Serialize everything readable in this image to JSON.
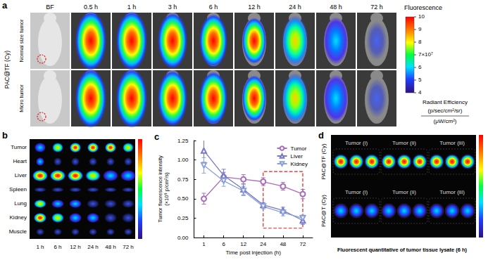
{
  "panels": {
    "a": {
      "letter": "a",
      "columns": [
        "BF",
        "0.5 h",
        "1 h",
        "3 h",
        "6 h",
        "12 h",
        "24 h",
        "48 h",
        "72 h"
      ],
      "row_group": "PAC@TF (Cy)",
      "rows": [
        "Normal size tumor",
        "Micro tumor"
      ],
      "colorbar": {
        "title": "Fluorescence",
        "range": [
          4,
          10
        ],
        "ticks": [
          10,
          9,
          8,
          {
            "value": 7,
            "label": "7×10⁷"
          },
          6,
          5,
          4
        ],
        "unit": [
          "Radiant Efficiency",
          "(p/sec/cm²/sr)",
          "(μW/cm²)"
        ]
      }
    },
    "b": {
      "letter": "b",
      "rows": [
        "Tumor",
        "Heart",
        "Liver",
        "Spleen",
        "Lung",
        "Kidney",
        "Muscle"
      ],
      "columns": [
        "1 h",
        "6 h",
        "12 h",
        "24 h",
        "48 h",
        "72 h"
      ]
    },
    "c": {
      "letter": "c"
    },
    "d": {
      "letter": "d",
      "rows": [
        "PAC@TF (Cy)",
        "PAC@T (Cy)"
      ],
      "groups": [
        "Tumor (i)",
        "Tumor (ii)",
        "Tumor (iii)"
      ],
      "title": "Fluorescent quantitative of tumor tissue lysate (6 h)"
    }
  },
  "chart_data": {
    "type": "line",
    "x_label": "Time post injection (h)",
    "y_label": "Tumor fluorescence intensity (×10⁹ p/cm²/s)",
    "categories": [
      "1",
      "6",
      "12",
      "24",
      "48",
      "72"
    ],
    "ylim": [
      0,
      1.25
    ],
    "yticks": [
      {
        "value": 0,
        "label": "0.00"
      },
      {
        "value": 0.25,
        "label": "0.25"
      },
      {
        "value": 0.5,
        "label": "0.50"
      },
      {
        "value": 0.75,
        "label": "0.75"
      },
      {
        "value": 1,
        "label": "1.00"
      },
      {
        "value": 1.25,
        "label": "1.25"
      }
    ],
    "legend": "top-right",
    "grid": false,
    "highlight": {
      "x": [
        "24",
        "72"
      ],
      "y": [
        0.12,
        0.85
      ]
    },
    "series": [
      {
        "name": "Tumor",
        "color": "#a96dbb",
        "marker": "circle",
        "values": [
          0.5,
          0.78,
          0.75,
          0.72,
          0.66,
          0.56
        ],
        "errors": [
          0.07,
          0.06,
          0.06,
          0.05,
          0.05,
          0.06
        ]
      },
      {
        "name": "Liver",
        "color": "#7779c6",
        "marker": "triangle",
        "values": [
          1.12,
          0.8,
          0.62,
          0.42,
          0.35,
          0.22
        ],
        "errors": [
          0.15,
          0.08,
          0.07,
          0.03,
          0.04,
          0.05
        ]
      },
      {
        "name": "Kidney",
        "color": "#8aa0da",
        "marker": "triangle-down",
        "values": [
          0.93,
          0.73,
          0.6,
          0.4,
          0.32,
          0.25
        ],
        "errors": [
          0.1,
          0.07,
          0.06,
          0.03,
          0.04,
          0.04
        ]
      }
    ]
  }
}
